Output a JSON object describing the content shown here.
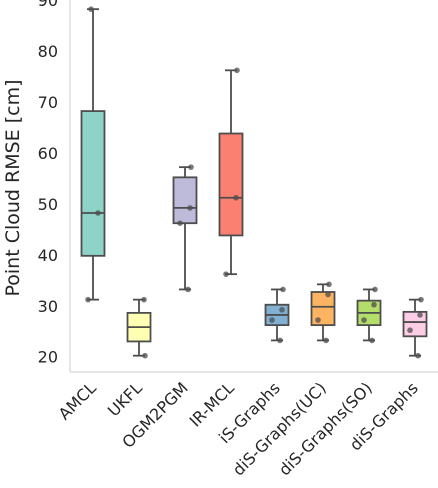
{
  "chart_data": {
    "type": "box",
    "title": "",
    "xlabel": "",
    "ylabel": "Point Cloud RMSE [cm]",
    "ylim": [
      17,
      90
    ],
    "yticks": [
      20,
      30,
      40,
      50,
      60,
      70,
      80,
      90
    ],
    "grid": false,
    "categories": [
      "AMCL",
      "UKFL",
      "OGM2PGM",
      "IR-MCL",
      "iS-Graphs",
      "diS-Graphs(UC)",
      "diS-Graphs(SO)",
      "diS-Graphs"
    ],
    "colors": [
      "#8dd3c7",
      "#ffffb3",
      "#bebada",
      "#fb8072",
      "#80b1d3",
      "#fdb462",
      "#b3de69",
      "#fccde5"
    ],
    "boxes": [
      {
        "min": 31.2,
        "q1": 39.8,
        "median": 48.2,
        "q3": 68.2,
        "max": 88.2,
        "points": [
          88.2,
          48.2,
          31.2
        ]
      },
      {
        "min": 20.2,
        "q1": 23.0,
        "median": 25.8,
        "q3": 28.6,
        "max": 31.2,
        "points": [
          20.2,
          31.2
        ]
      },
      {
        "min": 33.2,
        "q1": 46.2,
        "median": 49.2,
        "q3": 55.2,
        "max": 57.2,
        "points": [
          57.2,
          49.2,
          46.2,
          33.2
        ]
      },
      {
        "min": 36.2,
        "q1": 43.8,
        "median": 51.2,
        "q3": 63.8,
        "max": 76.2,
        "points": [
          76.2,
          51.2,
          36.2
        ]
      },
      {
        "min": 23.2,
        "q1": 26.2,
        "median": 28.2,
        "q3": 30.2,
        "max": 33.2,
        "points": [
          33.2,
          29.2,
          27.2,
          23.2
        ]
      },
      {
        "min": 23.2,
        "q1": 26.2,
        "median": 29.8,
        "q3": 32.7,
        "max": 34.2,
        "points": [
          34.2,
          32.2,
          27.2,
          23.2
        ]
      },
      {
        "min": 23.2,
        "q1": 26.2,
        "median": 28.6,
        "q3": 31.0,
        "max": 33.2,
        "points": [
          33.2,
          30.2,
          27.2,
          23.2
        ]
      },
      {
        "min": 20.2,
        "q1": 24.0,
        "median": 26.8,
        "q3": 28.8,
        "max": 31.2,
        "points": [
          31.2,
          28.2,
          25.2,
          20.2
        ]
      }
    ]
  }
}
